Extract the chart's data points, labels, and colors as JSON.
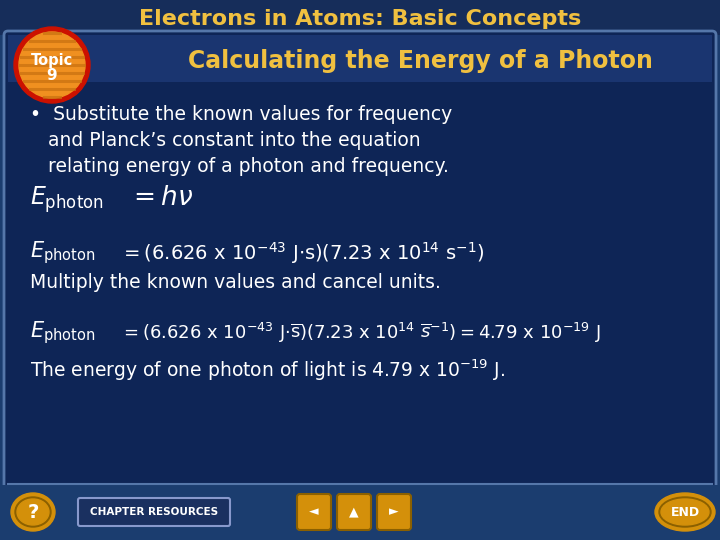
{
  "title": "Electrons in Atoms: Basic Concepts",
  "subtitle": "Calculating the Energy of a Photon",
  "bullet_text_line1": "•  Substitute the known values for frequency",
  "bullet_text_line2": "    and Planck’s constant into the equation",
  "bullet_text_line3": "    relating energy of a photon and frequency.",
  "multiply_text": "Multiply the known values and cancel units.",
  "final_text": "The energy of one photon of light is 4.79 x 10",
  "final_exp": "-19",
  "final_unit": " J.",
  "bg_outer": "#1b3d6f",
  "bg_inner": "#0e2556",
  "title_color": "#f0c040",
  "subtitle_color": "#f0c040",
  "topic_red": "#cc1100",
  "topic_orange": "#f09020",
  "topic_stripe": "#c87010",
  "topic_text_color": "#ffffff",
  "body_text_color": "#ffffff",
  "border_color": "#5577aa",
  "nav_color": "#d4900a",
  "chapter_bg": "#1a3060",
  "chapter_border": "#8899cc"
}
